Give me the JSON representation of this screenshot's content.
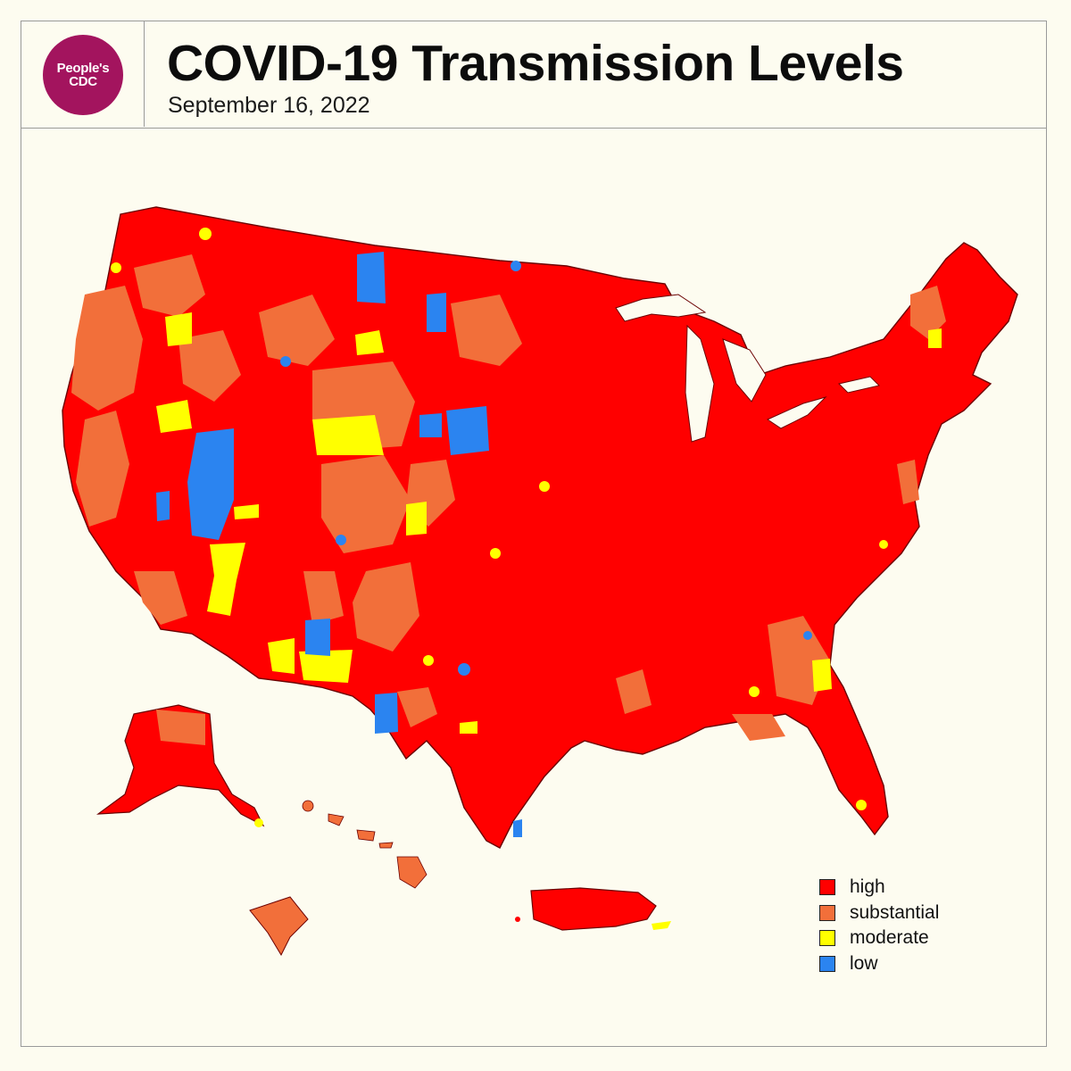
{
  "header": {
    "logo_line1": "People's",
    "logo_line2": "CDC",
    "title": "COVID-19 Transmission Levels",
    "date": "September 16, 2022"
  },
  "colors": {
    "high": "#ff0000",
    "substantial": "#f26f3a",
    "moderate": "#ffff00",
    "low": "#2b84f0",
    "background": "#fdfcf0",
    "logo": "#a3145e"
  },
  "legend": [
    {
      "label": "high",
      "color": "#ff0000"
    },
    {
      "label": "substantial",
      "color": "#f26f3a"
    },
    {
      "label": "moderate",
      "color": "#ffff00"
    },
    {
      "label": "low",
      "color": "#2b84f0"
    }
  ],
  "map": {
    "regions": [
      "contiguous-us",
      "alaska",
      "hawaii",
      "puerto-rico",
      "guam"
    ],
    "predominant_level": "high"
  }
}
